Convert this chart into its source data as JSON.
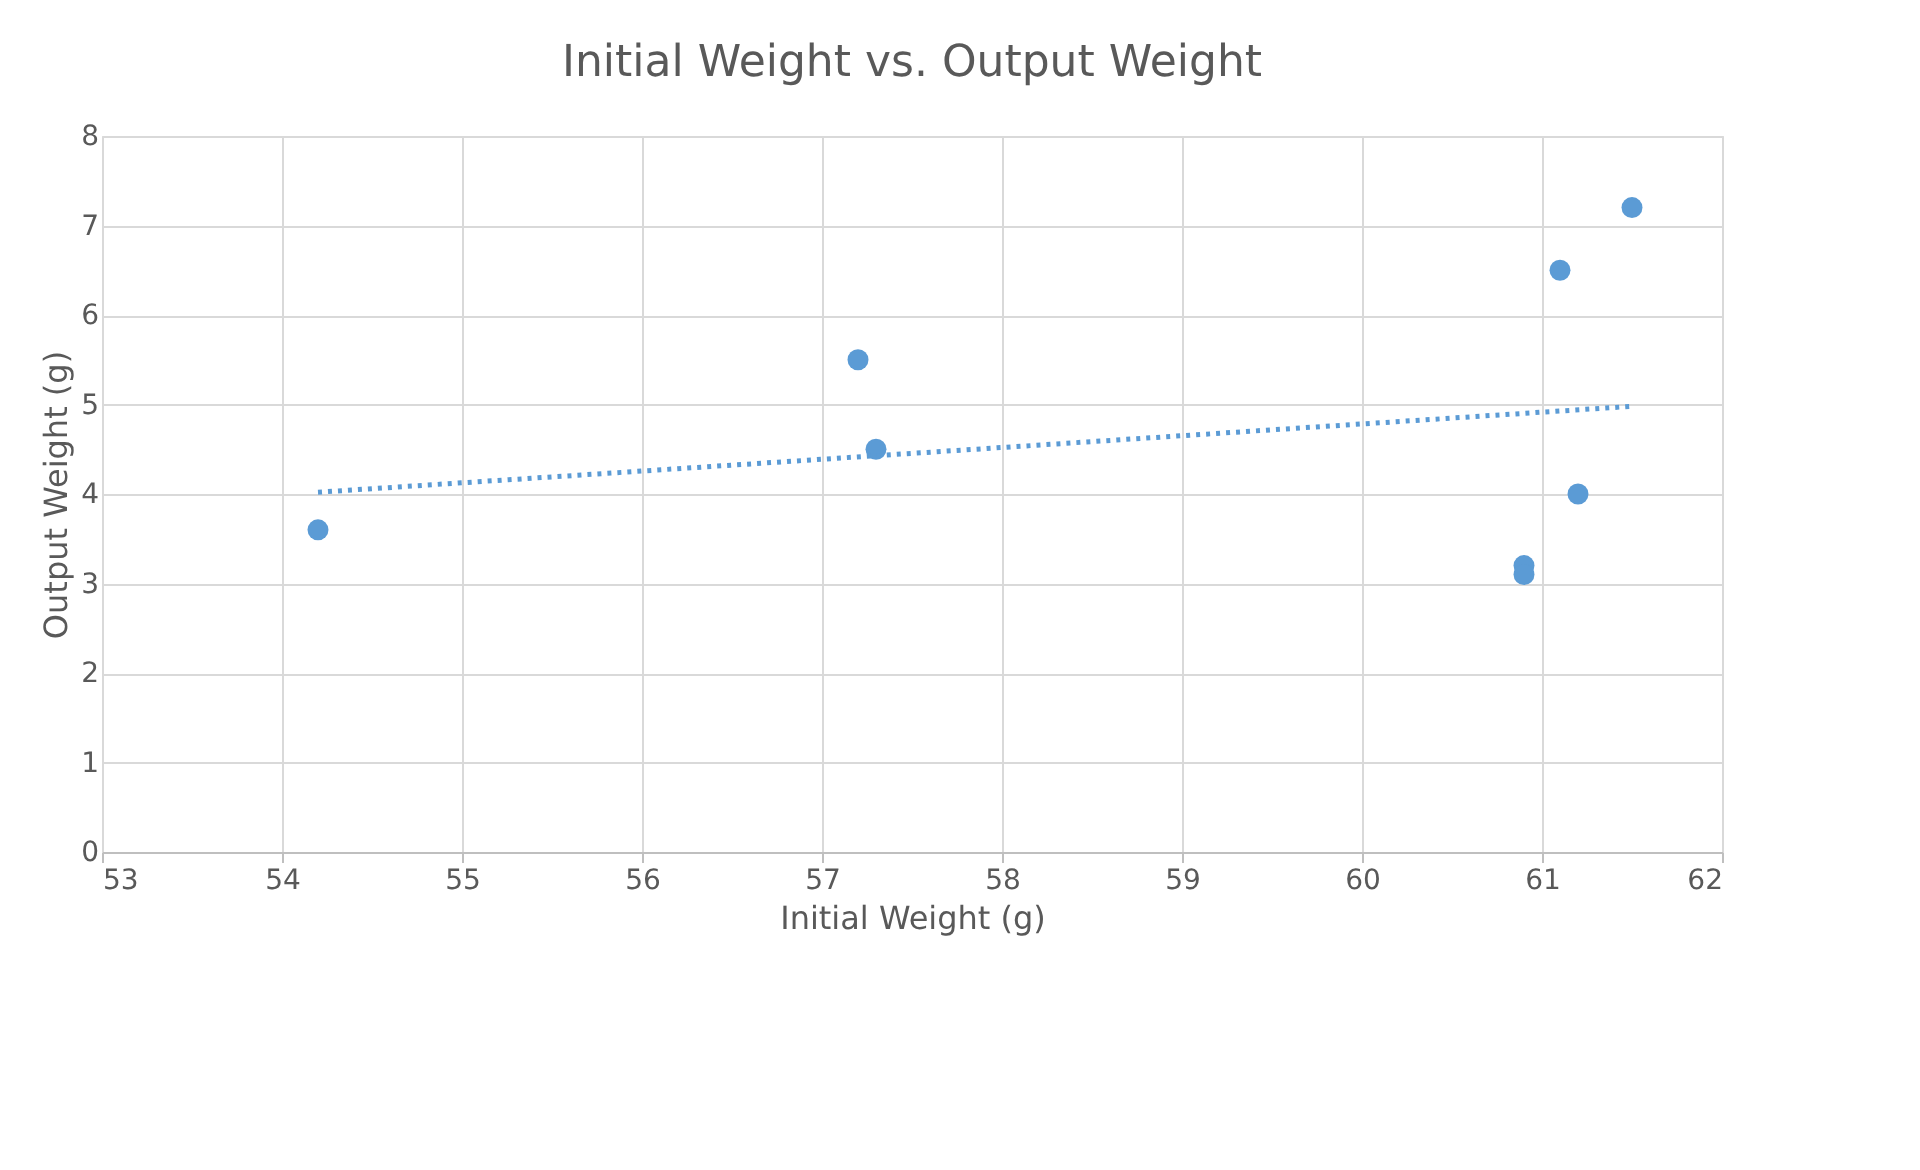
{
  "chart_data": {
    "type": "scatter",
    "title": "Initial Weight vs. Output Weight",
    "xlabel": "Initial Weight (g)",
    "ylabel": "Output Weight (g)",
    "xlim": [
      53,
      62
    ],
    "xticks": [
      53,
      54,
      55,
      56,
      57,
      58,
      59,
      60,
      61,
      62
    ],
    "ylim": [
      0,
      8
    ],
    "yticks": [
      0,
      1,
      2,
      3,
      4,
      5,
      6,
      7,
      8
    ],
    "grid": true,
    "marker": "circle",
    "series": [
      {
        "color": "#5b9bd5",
        "x": [
          54.2,
          57.2,
          57.3,
          60.9,
          60.9,
          61.2,
          61.1,
          61.5
        ],
        "values": [
          3.6,
          5.5,
          4.5,
          3.2,
          3.1,
          4.0,
          6.5,
          7.2
        ]
      },
      {
        "type": "line",
        "color": "#5b9bd5",
        "line_style": "dotted",
        "marker": "none",
        "x": [
          54.2,
          61.5
        ],
        "values": [
          4.02,
          4.98
        ]
      }
    ]
  }
}
